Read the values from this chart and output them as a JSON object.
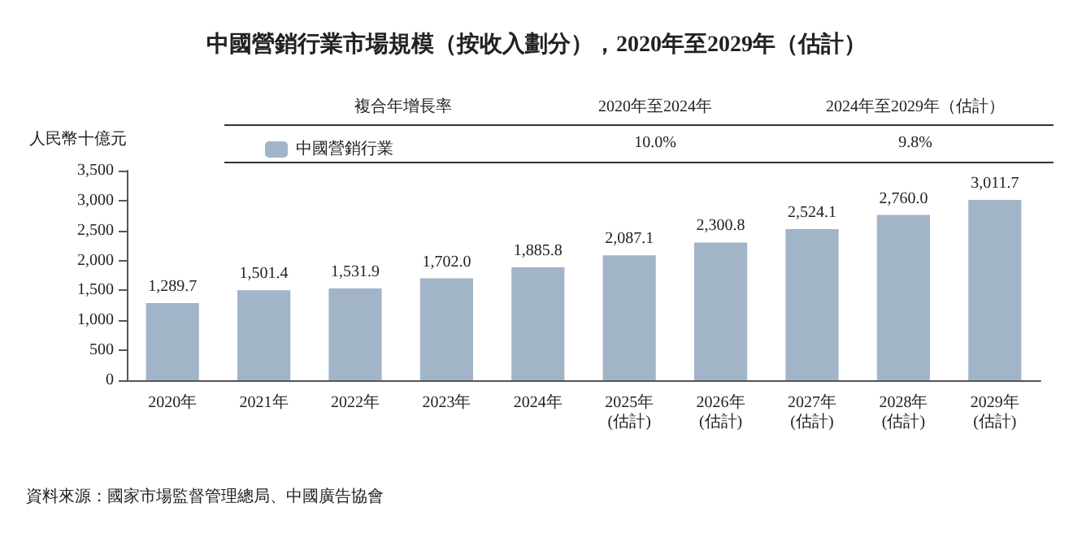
{
  "chart_data": {
    "type": "bar",
    "title": "中國營銷行業市場規模（按收入劃分），2020年至2029年（估計）",
    "ylabel": "人民幣十億元",
    "categories": [
      "2020年",
      "2021年",
      "2022年",
      "2023年",
      "2024年",
      "2025年\n(估計)",
      "2026年\n(估計)",
      "2027年\n(估計)",
      "2028年\n(估計)",
      "2029年\n(估計)"
    ],
    "series": [
      {
        "name": "中國營銷行業",
        "color": "#a2b4c8",
        "values": [
          1289.7,
          1501.4,
          1531.9,
          1702.0,
          1885.8,
          2087.1,
          2300.8,
          2524.1,
          2760.0,
          3011.7
        ],
        "value_labels": [
          "1,289.7",
          "1,501.4",
          "1,531.9",
          "1,702.0",
          "1,885.8",
          "2,087.1",
          "2,300.8",
          "2,524.1",
          "2,760.0",
          "3,011.7"
        ]
      }
    ],
    "ylim": [
      0,
      3500
    ],
    "yticks": [
      0,
      500,
      {
        "value": 1000,
        "label": "1,000"
      },
      {
        "value": 1500,
        "label": "1,500"
      },
      {
        "value": 2000,
        "label": "2,000"
      },
      {
        "value": 2500,
        "label": "2,500"
      },
      {
        "value": 3000,
        "label": "3,000"
      },
      {
        "value": 3500,
        "label": "3,500"
      }
    ],
    "grid": false,
    "legend": "top",
    "annotations": [
      "複合年增長率",
      "2020年至2024年",
      "2024年至2029年（估計）",
      "10.0%",
      "9.8%",
      "資料來源：國家市場監督管理總局、中國廣告協會"
    ]
  }
}
